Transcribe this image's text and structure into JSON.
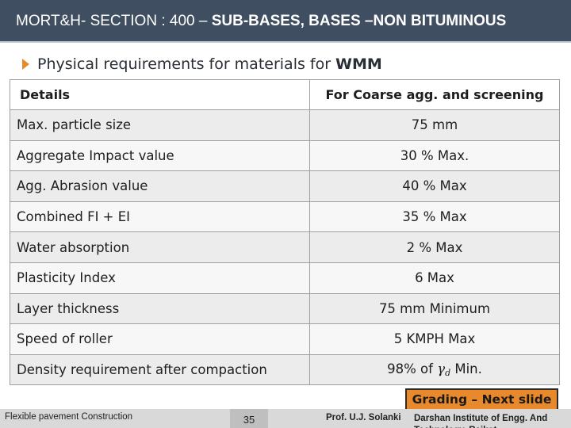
{
  "header": {
    "title_prefix": "MORT&H- SECTION : 400 – ",
    "title_bold": "SUB-BASES, BASES –NON BITUMINOUS"
  },
  "subtitle": {
    "text": "Physical requirements for materials for",
    "bold": "WMM"
  },
  "table": {
    "headers": [
      "Details",
      "For Coarse agg. and screening"
    ],
    "rows": [
      {
        "detail": "Max. particle size",
        "value": "75 mm"
      },
      {
        "detail": "Aggregate Impact value",
        "value": "30 % Max."
      },
      {
        "detail": "Agg. Abrasion value",
        "value": "40 % Max"
      },
      {
        "detail": "Combined FI + EI",
        "value": "35 % Max"
      },
      {
        "detail": "Water absorption",
        "value": "2 % Max"
      },
      {
        "detail": "Plasticity Index",
        "value": "6 Max"
      },
      {
        "detail": "Layer thickness",
        "value": "75 mm Minimum"
      },
      {
        "detail": "Speed of roller",
        "value": "5 KMPH Max"
      }
    ],
    "density_row": {
      "detail": "Density requirement after compaction",
      "value_prefix": "98% of",
      "symbol": "γ",
      "subscript": "d",
      "value_suffix": "Min."
    }
  },
  "grading_note": "Grading – Next slide",
  "footer": {
    "left": "Flexible pavement Construction",
    "page": "35",
    "author": "Prof. U.J. Solanki",
    "institute": "Darshan Institute of Engg. And Technology, Rajkot"
  },
  "colors": {
    "header_bg": "#3f4e60",
    "accent": "#e8892b",
    "row_odd": "#ececec",
    "row_even": "#f7f7f7",
    "footer_bg": "#d9d9d9"
  }
}
